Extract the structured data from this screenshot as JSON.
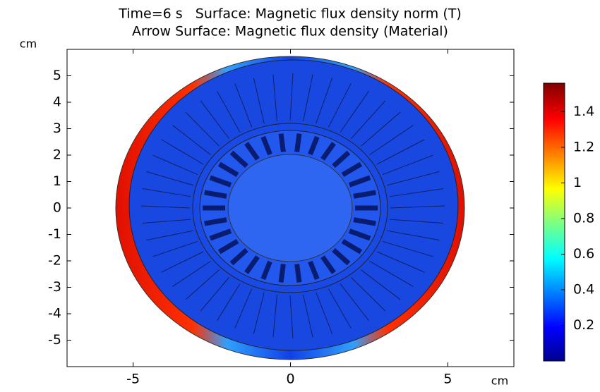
{
  "chart_data": {
    "type": "surface",
    "title": "Time=6 s   Surface: Magnetic flux density norm (T)",
    "subtitle": "Arrow Surface: Magnetic flux density (Material)",
    "x_label": "cm",
    "y_label": "cm",
    "xlim": [
      -7.1,
      7.1
    ],
    "xticks": [
      -5,
      0,
      5
    ],
    "ylim": [
      -6,
      6
    ],
    "yticks": [
      -5,
      -4,
      -3,
      -2,
      -1,
      0,
      1,
      2,
      3,
      4,
      5
    ],
    "colorbar": {
      "clim": [
        0,
        1.56
      ],
      "ticks": [
        0.2,
        0.4,
        0.6,
        0.8,
        1,
        1.2,
        1.4
      ],
      "colormap": "jet"
    }
  }
}
